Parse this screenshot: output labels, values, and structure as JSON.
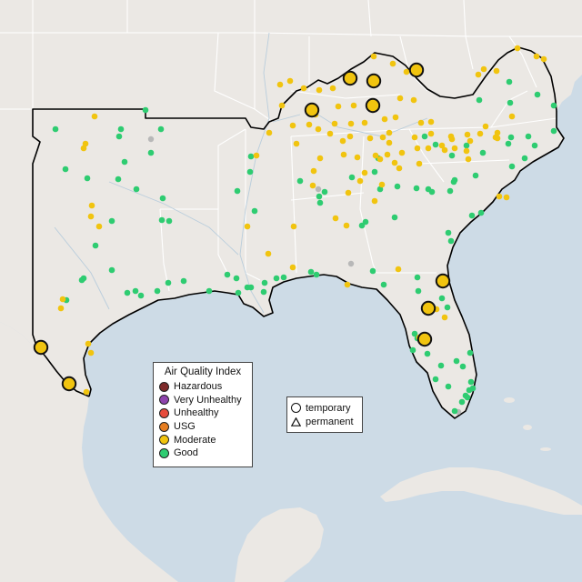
{
  "colors": {
    "water": "#cddbe6",
    "land": "#ebe8e4",
    "coast": "#000000",
    "state_border": "#ffffff",
    "good": "#2ecc71",
    "moderate": "#f1c40f",
    "nodata": "#b8b8b8"
  },
  "legend": {
    "title": "Air Quality Index",
    "items": [
      {
        "label": "Hazardous",
        "color": "#7e2a2a"
      },
      {
        "label": "Very Unhealthy",
        "color": "#8e44ad"
      },
      {
        "label": "Unhealthy",
        "color": "#e74c3c"
      },
      {
        "label": "USG",
        "color": "#e67e22"
      },
      {
        "label": "Moderate",
        "color": "#f1c40f"
      },
      {
        "label": "Good",
        "color": "#2ecc71"
      }
    ]
  },
  "shape_legend": {
    "temporary_label": "temporary",
    "permanent_label": "permanent"
  },
  "monitors": {
    "large_moderate": [
      [
        45,
        382
      ],
      [
        76,
        422
      ],
      [
        343,
        121
      ],
      [
        385,
        86
      ],
      [
        411,
        89
      ],
      [
        410,
        116
      ],
      [
        458,
        77
      ],
      [
        487,
        309
      ],
      [
        471,
        339
      ],
      [
        467,
        373
      ]
    ],
    "good": [
      [
        61,
        142
      ],
      [
        72,
        186
      ],
      [
        96,
        196
      ],
      [
        133,
        142
      ],
      [
        131,
        150
      ],
      [
        160,
        121
      ],
      [
        177,
        142
      ],
      [
        166,
        168
      ],
      [
        137,
        178
      ],
      [
        150,
        208
      ],
      [
        179,
        218
      ],
      [
        178,
        242
      ],
      [
        186,
        243
      ],
      [
        123,
        243
      ],
      [
        105,
        270
      ],
      [
        123,
        297
      ],
      [
        92,
        306
      ],
      [
        90,
        308
      ],
      [
        73,
        330
      ],
      [
        140,
        322
      ],
      [
        149,
        320
      ],
      [
        155,
        325
      ],
      [
        173,
        320
      ],
      [
        185,
        311
      ],
      [
        202,
        309
      ],
      [
        250,
        302
      ],
      [
        260,
        306
      ],
      [
        230,
        320
      ],
      [
        262,
        322
      ],
      [
        272,
        316
      ],
      [
        276,
        316
      ],
      [
        290,
        321
      ],
      [
        304,
        306
      ],
      [
        312,
        305
      ],
      [
        276,
        172
      ],
      [
        275,
        189
      ],
      [
        261,
        210
      ],
      [
        330,
        199
      ],
      [
        351,
        216
      ],
      [
        357,
        211
      ],
      [
        352,
        223
      ],
      [
        402,
        244
      ],
      [
        398,
        248
      ],
      [
        434,
        239
      ],
      [
        416,
        174
      ],
      [
        412,
        189
      ],
      [
        418,
        208
      ],
      [
        437,
        205
      ],
      [
        458,
        207
      ],
      [
        475,
        211
      ],
      [
        471,
        208
      ],
      [
        495,
        210
      ],
      [
        499,
        200
      ],
      [
        467,
        150
      ],
      [
        479,
        159
      ],
      [
        497,
        171
      ],
      [
        513,
        160
      ],
      [
        523,
        193
      ],
      [
        500,
        198
      ],
      [
        531,
        168
      ],
      [
        562,
        151
      ],
      [
        559,
        158
      ],
      [
        581,
        150
      ],
      [
        563,
        183
      ],
      [
        588,
        160
      ],
      [
        577,
        174
      ],
      [
        609,
        144
      ],
      [
        609,
        116
      ],
      [
        591,
        104
      ],
      [
        561,
        113
      ],
      [
        527,
        110
      ],
      [
        560,
        90
      ],
      [
        519,
        237
      ],
      [
        529,
        234
      ],
      [
        493,
        256
      ],
      [
        496,
        265
      ],
      [
        342,
        299
      ],
      [
        348,
        302
      ],
      [
        422,
        313
      ],
      [
        410,
        298
      ],
      [
        459,
        305
      ],
      [
        460,
        320
      ],
      [
        486,
        328
      ],
      [
        492,
        338
      ],
      [
        456,
        367
      ],
      [
        459,
        372
      ],
      [
        454,
        385
      ],
      [
        470,
        389
      ],
      [
        485,
        402
      ],
      [
        479,
        417
      ],
      [
        502,
        397
      ],
      [
        517,
        388
      ],
      [
        509,
        403
      ],
      [
        518,
        420
      ],
      [
        516,
        429
      ],
      [
        512,
        435
      ],
      [
        508,
        442
      ],
      [
        514,
        437
      ],
      [
        520,
        427
      ],
      [
        493,
        425
      ],
      [
        500,
        452
      ],
      [
        387,
        195
      ],
      [
        291,
        311
      ],
      [
        280,
        232
      ],
      [
        130,
        197
      ]
    ],
    "moderate": [
      [
        94,
        158
      ],
      [
        92,
        163
      ],
      [
        104,
        128
      ],
      [
        101,
        226
      ],
      [
        100,
        238
      ],
      [
        109,
        249
      ],
      [
        69,
        329
      ],
      [
        67,
        339
      ],
      [
        97,
        378
      ],
      [
        100,
        388
      ],
      [
        95,
        431
      ],
      [
        282,
        171
      ],
      [
        296,
        146
      ],
      [
        310,
        116
      ],
      [
        322,
        138
      ],
      [
        326,
        158
      ],
      [
        340,
        137
      ],
      [
        347,
        126
      ],
      [
        350,
        142
      ],
      [
        363,
        147
      ],
      [
        368,
        136
      ],
      [
        377,
        155
      ],
      [
        378,
        170
      ],
      [
        352,
        174
      ],
      [
        345,
        188
      ],
      [
        344,
        204
      ],
      [
        383,
        212
      ],
      [
        385,
        150
      ],
      [
        351,
        99
      ],
      [
        366,
        97
      ],
      [
        372,
        117
      ],
      [
        389,
        116
      ],
      [
        386,
        136
      ],
      [
        401,
        135
      ],
      [
        407,
        152
      ],
      [
        421,
        151
      ],
      [
        428,
        146
      ],
      [
        428,
        157
      ],
      [
        426,
        170
      ],
      [
        418,
        175
      ],
      [
        393,
        173
      ],
      [
        413,
        171
      ],
      [
        401,
        190
      ],
      [
        412,
        221
      ],
      [
        435,
        129
      ],
      [
        440,
        108
      ],
      [
        455,
        110
      ],
      [
        463,
        135
      ],
      [
        474,
        134
      ],
      [
        474,
        147
      ],
      [
        496,
        150
      ],
      [
        486,
        160
      ],
      [
        489,
        165
      ],
      [
        500,
        163
      ],
      [
        514,
        148
      ],
      [
        517,
        155
      ],
      [
        534,
        139
      ],
      [
        528,
        147
      ],
      [
        547,
        146
      ],
      [
        547,
        152
      ],
      [
        545,
        151
      ],
      [
        442,
        168
      ],
      [
        439,
        185
      ],
      [
        461,
        180
      ],
      [
        434,
        179
      ],
      [
        513,
        166
      ],
      [
        515,
        175
      ],
      [
        563,
        128
      ],
      [
        590,
        62
      ],
      [
        598,
        65
      ],
      [
        569,
        53
      ],
      [
        532,
        76
      ],
      [
        546,
        78
      ],
      [
        526,
        82
      ],
      [
        411,
        62
      ],
      [
        432,
        70
      ],
      [
        334,
        97
      ],
      [
        319,
        89
      ],
      [
        308,
        93
      ],
      [
        323,
        249
      ],
      [
        322,
        294
      ],
      [
        272,
        249
      ],
      [
        295,
        279
      ],
      [
        382,
        313
      ],
      [
        438,
        296
      ],
      [
        381,
        248
      ],
      [
        369,
        240
      ],
      [
        396,
        199
      ],
      [
        420,
        203
      ],
      [
        423,
        131
      ],
      [
        447,
        79
      ],
      [
        456,
        151
      ],
      [
        459,
        163
      ],
      [
        471,
        163
      ],
      [
        497,
        153
      ],
      [
        461,
        371
      ],
      [
        480,
        340
      ],
      [
        489,
        349
      ],
      [
        549,
        216
      ],
      [
        557,
        217
      ]
    ],
    "nodata": [
      [
        166,
        153
      ],
      [
        386,
        290
      ],
      [
        350,
        208
      ],
      [
        504,
        453
      ]
    ]
  }
}
